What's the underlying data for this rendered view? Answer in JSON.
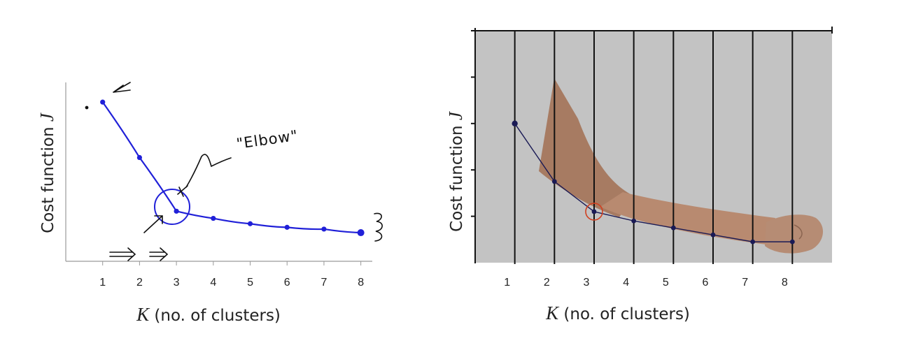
{
  "chart_data": [
    {
      "type": "line",
      "xlabel_var": "K",
      "xlabel_rest": " (no. of clusters)",
      "ylabel_text": "Cost function ",
      "ylabel_var": "J",
      "x": [
        1,
        2,
        3,
        4,
        5,
        6,
        7,
        8
      ],
      "y": [
        0.89,
        0.58,
        0.28,
        0.24,
        0.21,
        0.19,
        0.18,
        0.16
      ],
      "xlim": [
        0,
        8.5
      ],
      "ylim": [
        0,
        1
      ],
      "annotations": {
        "elbow": "\"Elbow\""
      },
      "colors": {
        "line": "#2020d8",
        "annotation": "#111111"
      }
    },
    {
      "type": "line",
      "xlabel_var": "K",
      "xlabel_rest": " (no. of clusters)",
      "ylabel_text": "Cost function ",
      "ylabel_var": "J",
      "x": [
        1,
        2,
        3,
        4,
        5,
        6,
        7,
        8
      ],
      "y": [
        0.6,
        0.35,
        0.22,
        0.18,
        0.15,
        0.12,
        0.09,
        0.09
      ],
      "xlim": [
        0,
        9
      ],
      "ylim": [
        0,
        1
      ],
      "background": "arm-photo",
      "colors": {
        "line": "#1a1a55",
        "panel": "#c3c3c3",
        "highlight": "#d04020"
      }
    }
  ]
}
